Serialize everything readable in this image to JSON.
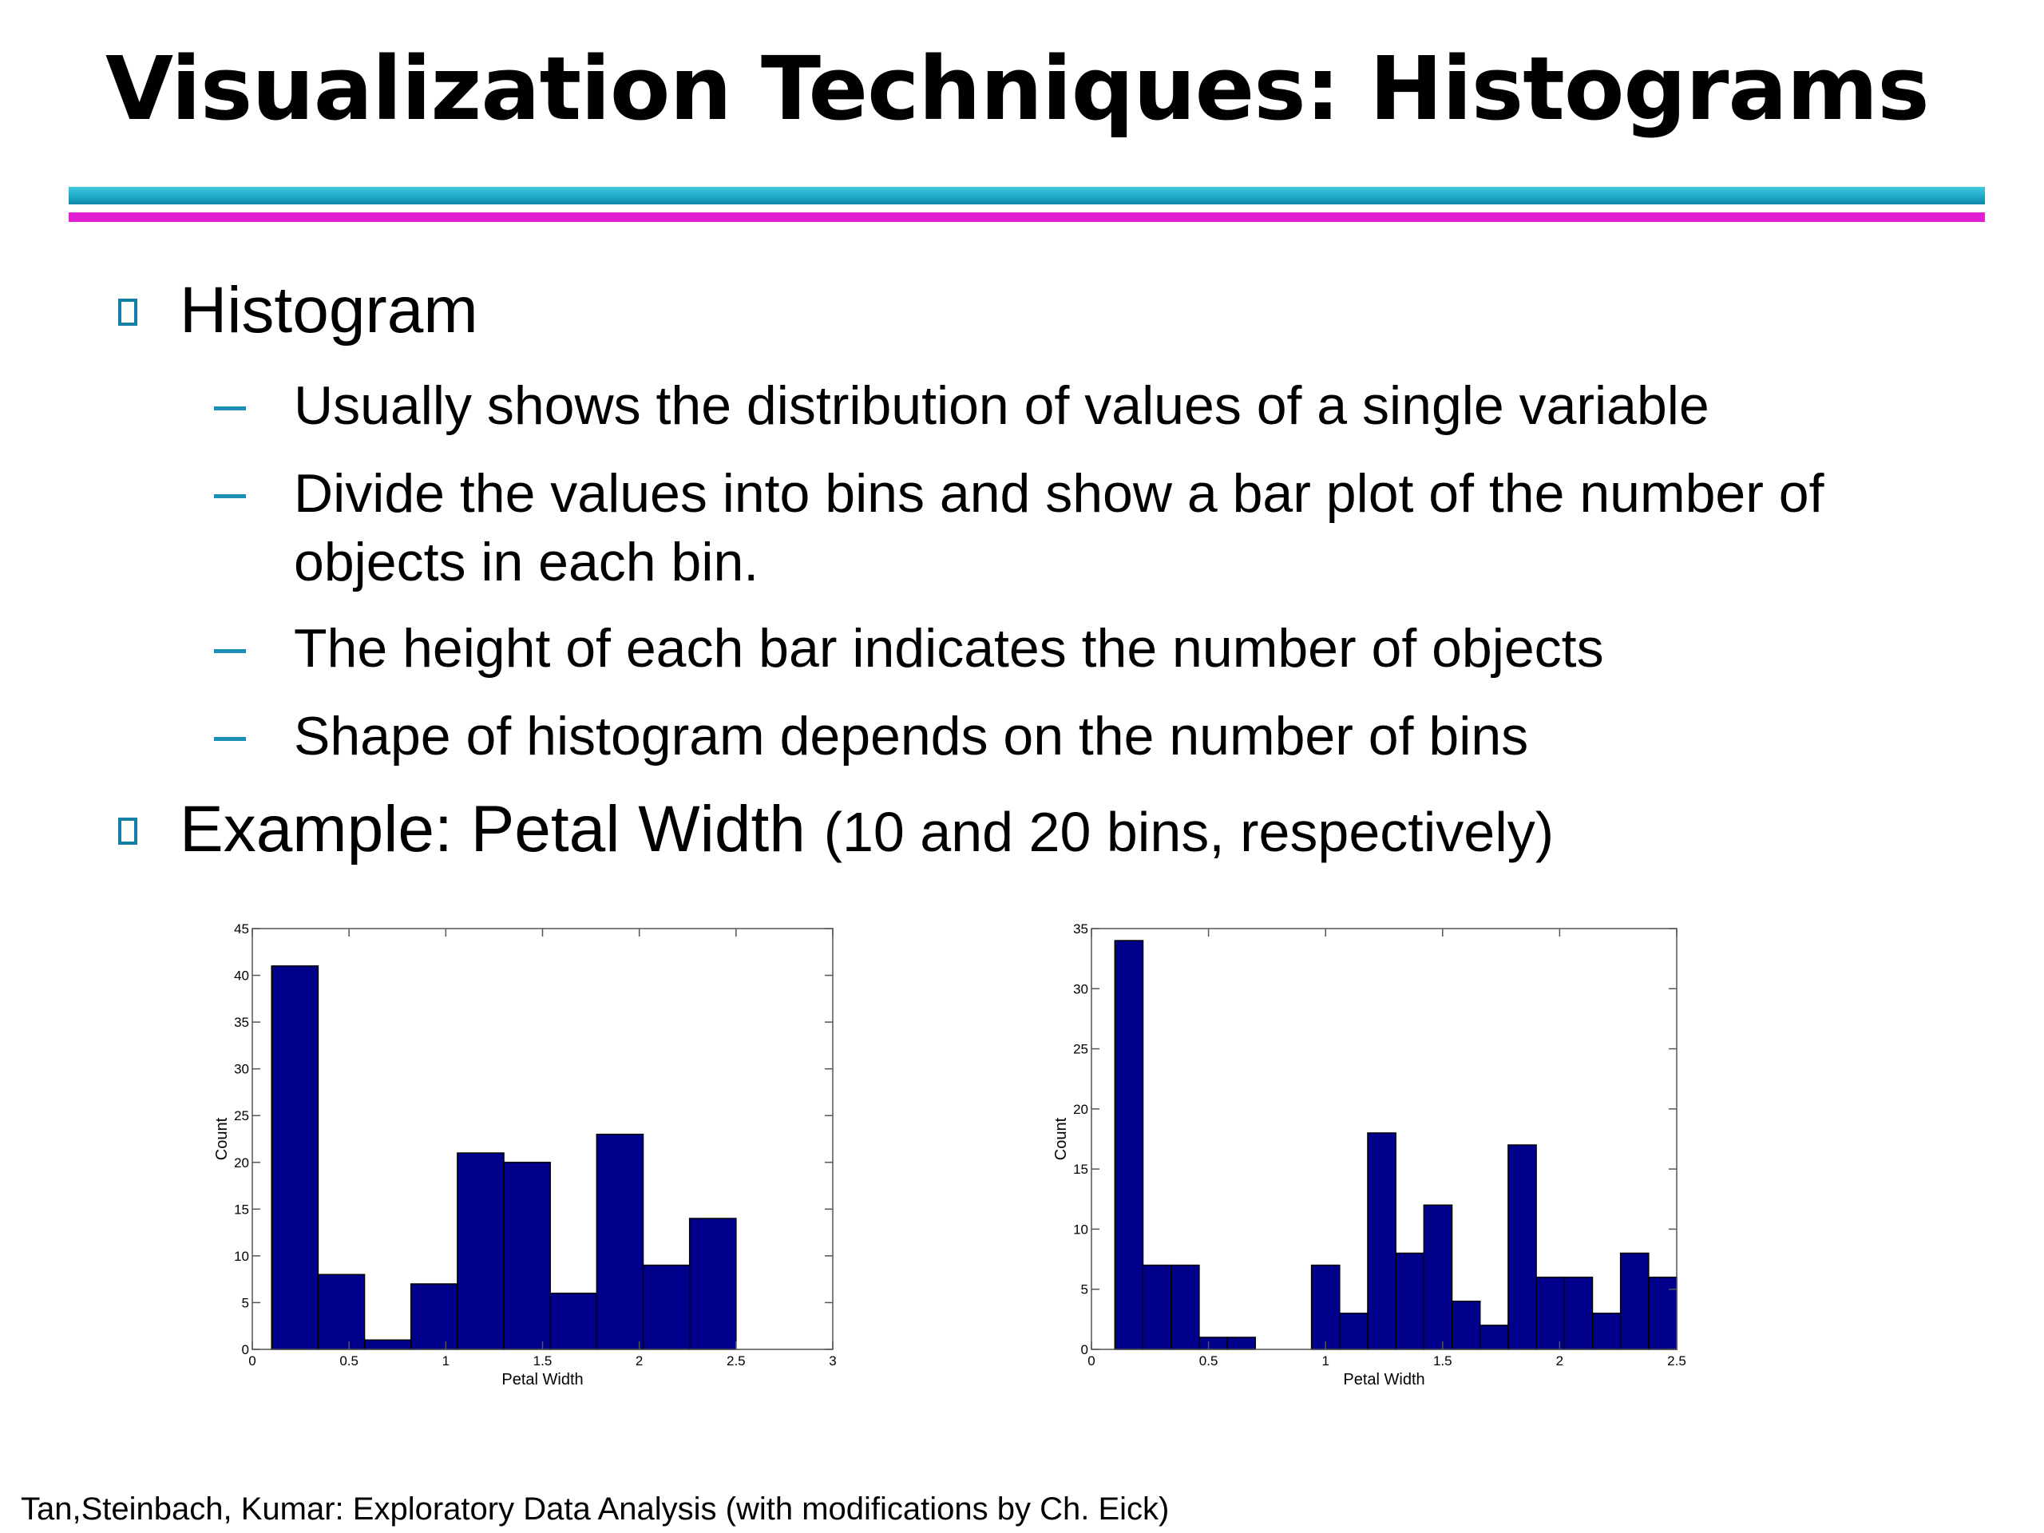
{
  "slide": {
    "title": "Visualization Techniques: Histograms",
    "bullets": [
      {
        "text": "Histogram",
        "sub": [
          "Usually shows the distribution of values of a single variable",
          "Divide the values into bins and show a bar plot of the number of",
          "objects in each bin.",
          "The height of each bar indicates the number of objects",
          "Shape of histogram depends on the number of bins"
        ]
      },
      {
        "text": "Example: Petal Width",
        "suffix": "(10 and 20 bins, respectively)"
      }
    ],
    "footer": "Tan,Steinbach, Kumar: Exploratory Data Analysis (with modifications by Ch. Eick)",
    "colors": {
      "bar": "#00008b",
      "rule_top": "#1aa6c4",
      "rule_bottom": "#e11fd3",
      "bullet": "#147fa6"
    }
  },
  "chart_data": [
    {
      "type": "bar",
      "xlabel": "Petal Width",
      "ylabel": "Count",
      "xlim": [
        0,
        3
      ],
      "ylim": [
        0,
        45
      ],
      "xticks": [
        0,
        0.5,
        1,
        1.5,
        2,
        2.5,
        3
      ],
      "xtick_labels": [
        "0",
        "0.5",
        "1",
        "1.5",
        "2",
        "2.5",
        "3"
      ],
      "yticks": [
        0,
        5,
        10,
        15,
        20,
        25,
        30,
        35,
        40,
        45
      ],
      "bin_edges": [
        0.1,
        0.34,
        0.58,
        0.82,
        1.06,
        1.3,
        1.54,
        1.78,
        2.02,
        2.26,
        2.5
      ],
      "values": [
        41,
        8,
        1,
        7,
        21,
        20,
        6,
        23,
        9,
        14
      ],
      "grid": false
    },
    {
      "type": "bar",
      "xlabel": "Petal Width",
      "ylabel": "Count",
      "xlim": [
        0,
        2.5
      ],
      "ylim": [
        0,
        35
      ],
      "xticks": [
        0,
        0.5,
        1,
        1.5,
        2,
        2.5
      ],
      "xtick_labels": [
        "0",
        "0.5",
        "1",
        "1.5",
        "2",
        "2.5"
      ],
      "yticks": [
        0,
        5,
        10,
        15,
        20,
        25,
        30,
        35
      ],
      "bin_edges": [
        0.1,
        0.22,
        0.34,
        0.46,
        0.58,
        0.7,
        0.82,
        0.94,
        1.06,
        1.18,
        1.3,
        1.42,
        1.54,
        1.66,
        1.78,
        1.9,
        2.02,
        2.14,
        2.26,
        2.38,
        2.5
      ],
      "values": [
        34,
        7,
        7,
        1,
        1,
        0,
        0,
        7,
        3,
        18,
        8,
        12,
        4,
        2,
        17,
        6,
        6,
        3,
        8,
        6
      ],
      "grid": false
    }
  ]
}
